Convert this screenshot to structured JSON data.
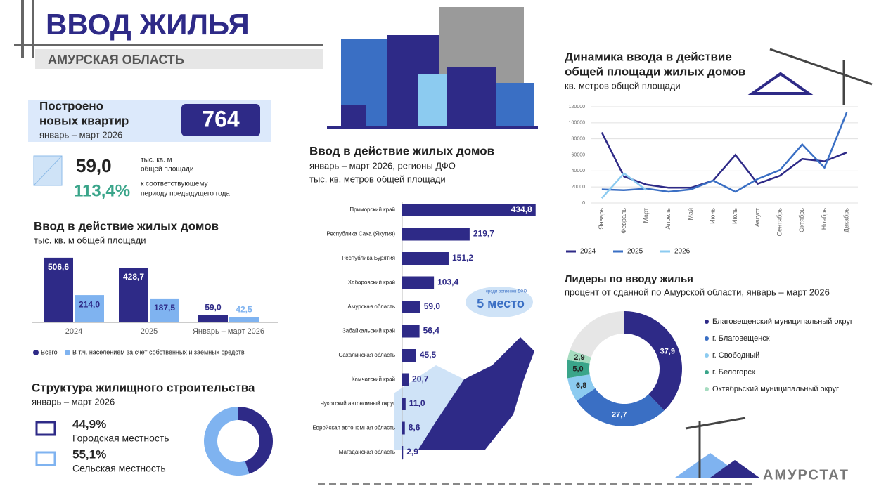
{
  "header": {
    "title": "ВВОД ЖИЛЬЯ",
    "subtitle": "АМУРСКАЯ ОБЛАСТЬ"
  },
  "apartments": {
    "label": [
      "Построено",
      "новых квартир"
    ],
    "period": "январь – март 2026",
    "value": "764"
  },
  "area": {
    "value": "59,0",
    "unit": [
      "тыс. кв. м",
      "общей площади"
    ],
    "percent": "113,4%",
    "percent_note": [
      "к соответствующему",
      "периоду предыдущего года"
    ]
  },
  "chart_data": [
    {
      "type": "bar",
      "title": "Ввод в действие жилых домов",
      "subtitle": "тыс. кв. м общей площади",
      "categories": [
        "2024",
        "2025",
        "Январь – март 2026"
      ],
      "ylim": [
        0,
        550
      ],
      "series": [
        {
          "name": "Всего",
          "color": "#2e2a87",
          "values": [
            506.6,
            428.7,
            59.0
          ],
          "value_labels": [
            "506,6",
            "428,7",
            "59,0"
          ]
        },
        {
          "name": "В т.ч. населением за счет собственных и заемных средств",
          "color": "#7fb3f0",
          "values": [
            214.0,
            187.5,
            42.5
          ],
          "value_labels": [
            "214,0",
            "187,5",
            "42,5"
          ]
        }
      ]
    },
    {
      "type": "pie",
      "title": "Структура жилищного строительства",
      "subtitle": "январь – март 2026",
      "categories": [
        "Городская местность",
        "Сельская местность"
      ],
      "values": [
        44.9,
        55.1
      ],
      "value_labels": [
        "44,9%",
        "55,1%"
      ],
      "colors": [
        "#2e2a87",
        "#7fb3f0"
      ]
    },
    {
      "type": "hbar",
      "title": "Ввод в действие жилых домов",
      "subtitle": [
        "январь – март 2026, регионы ДФО",
        "тыс. кв. метров общей площади"
      ],
      "categories": [
        "Приморский край",
        "Республика Саха (Якутия)",
        "Республика Бурятия",
        "Хабаровский край",
        "Амурская область",
        "Забайкальский край",
        "Сахалинская область",
        "Камчатский край",
        "Чукотский автономный округ",
        "Еврейская автономная область",
        "Магаданская область"
      ],
      "values": [
        434.8,
        219.7,
        151.2,
        103.4,
        59.0,
        56.4,
        45.5,
        20.7,
        11.0,
        8.6,
        2.9
      ],
      "value_labels": [
        "434,8",
        "219,7",
        "151,2",
        "103,4",
        "59,0",
        "56,4",
        "45,5",
        "20,7",
        "11,0",
        "8,6",
        "2,9"
      ],
      "color": "#2e2a87",
      "xlim": [
        0,
        440
      ],
      "annotation": {
        "note": "среди регионов ДФО",
        "rank": "5 место"
      }
    },
    {
      "type": "line",
      "title": [
        "Динамика ввода в действие",
        "общей площади жилых домов"
      ],
      "subtitle": "кв. метров общей площади",
      "categories": [
        "Январь",
        "Февраль",
        "Март",
        "Апрель",
        "Май",
        "Июнь",
        "Июль",
        "Август",
        "Сентябрь",
        "Октябрь",
        "Ноябрь",
        "Декабрь"
      ],
      "ylim": [
        0,
        120000
      ],
      "yticks": [
        0,
        20000,
        40000,
        60000,
        80000,
        100000,
        120000
      ],
      "grid": true,
      "series": [
        {
          "name": "2024",
          "color": "#2e2a87",
          "values": [
            88000,
            33000,
            23000,
            19000,
            19000,
            28000,
            60000,
            24000,
            34000,
            55000,
            52000,
            63000
          ]
        },
        {
          "name": "2025",
          "color": "#3a6fc4",
          "values": [
            17000,
            16000,
            18000,
            14000,
            17000,
            28000,
            14000,
            30000,
            41000,
            73000,
            44000,
            113000
          ]
        },
        {
          "name": "2026",
          "color": "#8ccbf0",
          "values": [
            6000,
            37000,
            16000,
            null,
            null,
            null,
            null,
            null,
            null,
            null,
            null,
            null
          ]
        }
      ]
    },
    {
      "type": "donut",
      "title": "Лидеры по вводу жилья",
      "subtitle": "процент от сданной по Амурской области, январь – март 2026",
      "categories": [
        "Благовещенский муниципальный округ",
        "г. Благовещенск",
        "г. Свободный",
        "г. Белогорск",
        "Октябрьский муниципальный округ"
      ],
      "values": [
        37.9,
        27.7,
        6.8,
        5.0,
        2.9
      ],
      "value_labels": [
        "37,9",
        "27,7",
        "6,8",
        "5,0",
        "2,9"
      ],
      "colors": [
        "#2e2a87",
        "#3a6fc4",
        "#8ccbf0",
        "#3aa58a",
        "#a6dcc0"
      ]
    }
  ],
  "footer": {
    "brand": "АМУРСТАТ"
  }
}
